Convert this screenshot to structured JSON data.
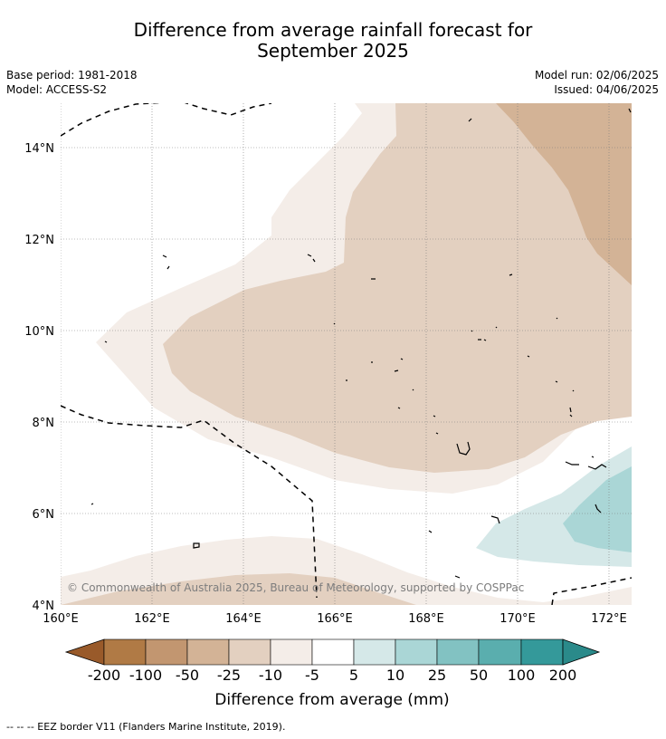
{
  "title_line1": "Difference from average rainfall forecast for",
  "title_line2": "September 2025",
  "base_period": "Base period: 1981-2018",
  "model": "Model: ACCESS-S2",
  "model_run": "Model run: 02/06/2025",
  "issued": "Issued: 04/06/2025",
  "copyright": "© Commonwealth of Australia 2025, Bureau of Meteorology, supported by COSPPac",
  "lat_ticks": [
    "14°N",
    "12°N",
    "10°N",
    "8°N",
    "6°N",
    "4°N"
  ],
  "lon_ticks": [
    "160°E",
    "162°E",
    "164°E",
    "166°E",
    "168°E",
    "170°E",
    "172°E"
  ],
  "colorbar": {
    "labels": [
      "-200",
      "-100",
      "-50",
      "-25",
      "-10",
      "-5",
      "5",
      "10",
      "25",
      "50",
      "100",
      "200"
    ],
    "colors": [
      "#995a2a",
      "#b07a45",
      "#c29670",
      "#d3b396",
      "#e3d0c0",
      "#f4ede8",
      "#ffffff",
      "#d5e8e8",
      "#aad6d6",
      "#82c2c2",
      "#5aaeae",
      "#34999a",
      "#2a8a8a"
    ],
    "title": "Difference from average (mm)"
  },
  "footnote": "--  --  -- EEZ border V11 (Flanders Marine Institute, 2019)."
}
